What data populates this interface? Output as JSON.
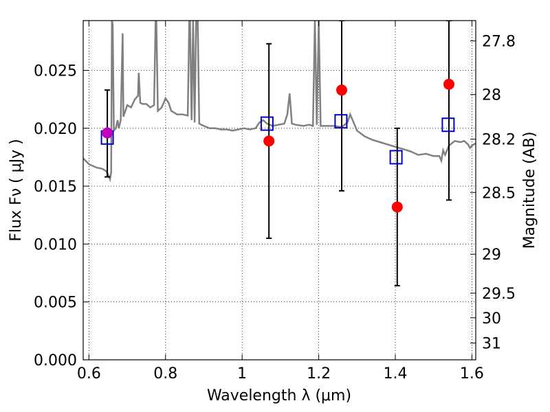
{
  "chart_data": {
    "type": "scatter",
    "xlabel": "Wavelength  λ (μm)",
    "ylabel": "Flux  Fν  ( μJy )",
    "y2label": "Magnitude (AB)",
    "xlim": [
      0.585,
      1.61
    ],
    "ylim": [
      0.0,
      0.0293
    ],
    "grid": true,
    "x_ticks": [
      0.6,
      0.8,
      1.0,
      1.2,
      1.4,
      1.6
    ],
    "x_tick_labels": [
      "0.6",
      "0.8",
      "1",
      "1.2",
      "1.4",
      "1.6"
    ],
    "y_ticks": [
      0.0,
      0.005,
      0.01,
      0.015,
      0.02,
      0.025
    ],
    "y_tick_labels": [
      "0.000",
      "0.005",
      "0.010",
      "0.015",
      "0.020",
      "0.025"
    ],
    "right_ticks": [
      27.8,
      28,
      28.2,
      28.5,
      29,
      29.5,
      30,
      31
    ],
    "right_tick_labels": [
      "27.8",
      "28",
      "28.2",
      "28.5",
      "29",
      "29.5",
      "30",
      "31"
    ],
    "series": [
      {
        "kind": "spectrum",
        "color": "#808080",
        "points": [
          [
            0.585,
            0.0174
          ],
          [
            0.6,
            0.0169
          ],
          [
            0.62,
            0.0166
          ],
          [
            0.635,
            0.0165
          ],
          [
            0.645,
            0.0163
          ],
          [
            0.65,
            0.016
          ],
          [
            0.655,
            0.0156
          ],
          [
            0.658,
            0.0162
          ],
          [
            0.66,
            0.0293
          ],
          [
            0.662,
            0.029
          ],
          [
            0.665,
            0.0198
          ],
          [
            0.67,
            0.02
          ],
          [
            0.675,
            0.0207
          ],
          [
            0.678,
            0.02
          ],
          [
            0.683,
            0.0207
          ],
          [
            0.688,
            0.0282
          ],
          [
            0.69,
            0.021
          ],
          [
            0.7,
            0.022
          ],
          [
            0.71,
            0.0218
          ],
          [
            0.72,
            0.0225
          ],
          [
            0.728,
            0.0228
          ],
          [
            0.73,
            0.0248
          ],
          [
            0.734,
            0.0222
          ],
          [
            0.74,
            0.0221
          ],
          [
            0.75,
            0.0221
          ],
          [
            0.76,
            0.0218
          ],
          [
            0.77,
            0.022
          ],
          [
            0.774,
            0.0293
          ],
          [
            0.776,
            0.0293
          ],
          [
            0.78,
            0.0215
          ],
          [
            0.79,
            0.0218
          ],
          [
            0.8,
            0.0226
          ],
          [
            0.808,
            0.0222
          ],
          [
            0.815,
            0.0215
          ],
          [
            0.83,
            0.0212
          ],
          [
            0.845,
            0.0212
          ],
          [
            0.858,
            0.0211
          ],
          [
            0.862,
            0.0293
          ],
          [
            0.864,
            0.0293
          ],
          [
            0.868,
            0.0207
          ],
          [
            0.872,
            0.0293
          ],
          [
            0.876,
            0.0205
          ],
          [
            0.88,
            0.0293
          ],
          [
            0.884,
            0.0293
          ],
          [
            0.888,
            0.0204
          ],
          [
            0.9,
            0.0202
          ],
          [
            0.915,
            0.02
          ],
          [
            0.93,
            0.02
          ],
          [
            0.945,
            0.0199
          ],
          [
            0.96,
            0.0199
          ],
          [
            0.975,
            0.0198
          ],
          [
            0.99,
            0.0199
          ],
          [
            1.005,
            0.02
          ],
          [
            1.02,
            0.0199
          ],
          [
            1.035,
            0.02
          ],
          [
            1.045,
            0.0205
          ],
          [
            1.055,
            0.0207
          ],
          [
            1.065,
            0.0204
          ],
          [
            1.08,
            0.0202
          ],
          [
            1.095,
            0.0203
          ],
          [
            1.11,
            0.0204
          ],
          [
            1.118,
            0.0212
          ],
          [
            1.124,
            0.023
          ],
          [
            1.13,
            0.0204
          ],
          [
            1.14,
            0.0203
          ],
          [
            1.16,
            0.0202
          ],
          [
            1.175,
            0.0203
          ],
          [
            1.185,
            0.0202
          ],
          [
            1.19,
            0.0293
          ],
          [
            1.195,
            0.0203
          ],
          [
            1.2,
            0.0293
          ],
          [
            1.205,
            0.0202
          ],
          [
            1.22,
            0.0202
          ],
          [
            1.24,
            0.0202
          ],
          [
            1.26,
            0.0201
          ],
          [
            1.275,
            0.0205
          ],
          [
            1.282,
            0.0212
          ],
          [
            1.29,
            0.0206
          ],
          [
            1.3,
            0.0198
          ],
          [
            1.32,
            0.0193
          ],
          [
            1.34,
            0.019
          ],
          [
            1.36,
            0.0188
          ],
          [
            1.38,
            0.0186
          ],
          [
            1.4,
            0.0184
          ],
          [
            1.42,
            0.0182
          ],
          [
            1.44,
            0.018
          ],
          [
            1.46,
            0.0177
          ],
          [
            1.48,
            0.0178
          ],
          [
            1.5,
            0.0176
          ],
          [
            1.515,
            0.0176
          ],
          [
            1.52,
            0.0172
          ],
          [
            1.525,
            0.0181
          ],
          [
            1.53,
            0.0177
          ],
          [
            1.54,
            0.0185
          ],
          [
            1.555,
            0.0189
          ],
          [
            1.57,
            0.0188
          ],
          [
            1.58,
            0.0189
          ],
          [
            1.59,
            0.0186
          ],
          [
            1.595,
            0.0183
          ],
          [
            1.6,
            0.0185
          ],
          [
            1.61,
            0.0187
          ]
        ]
      },
      {
        "kind": "observed",
        "color": "#ff0000",
        "points": [
          {
            "x": 1.07,
            "y": 0.0189,
            "lo": 0.0105,
            "hi": 0.0273
          },
          {
            "x": 1.26,
            "y": 0.0233,
            "lo": 0.0146,
            "hi": 0.0293
          },
          {
            "x": 1.405,
            "y": 0.0132,
            "lo": 0.0064,
            "hi": 0.02
          },
          {
            "x": 1.54,
            "y": 0.0238,
            "lo": 0.0138,
            "hi": 0.0293
          }
        ]
      },
      {
        "kind": "observed-overlap",
        "color": "#bf00bf",
        "points": [
          {
            "x": 0.648,
            "y": 0.0196,
            "lo": 0.0158,
            "hi": 0.0233
          }
        ]
      },
      {
        "kind": "model-band",
        "color": "#0000cc",
        "points": [
          {
            "x": 0.648,
            "y": 0.0192
          },
          {
            "x": 1.065,
            "y": 0.0204
          },
          {
            "x": 1.258,
            "y": 0.0206
          },
          {
            "x": 1.402,
            "y": 0.0175
          },
          {
            "x": 1.538,
            "y": 0.0203
          }
        ]
      }
    ]
  }
}
